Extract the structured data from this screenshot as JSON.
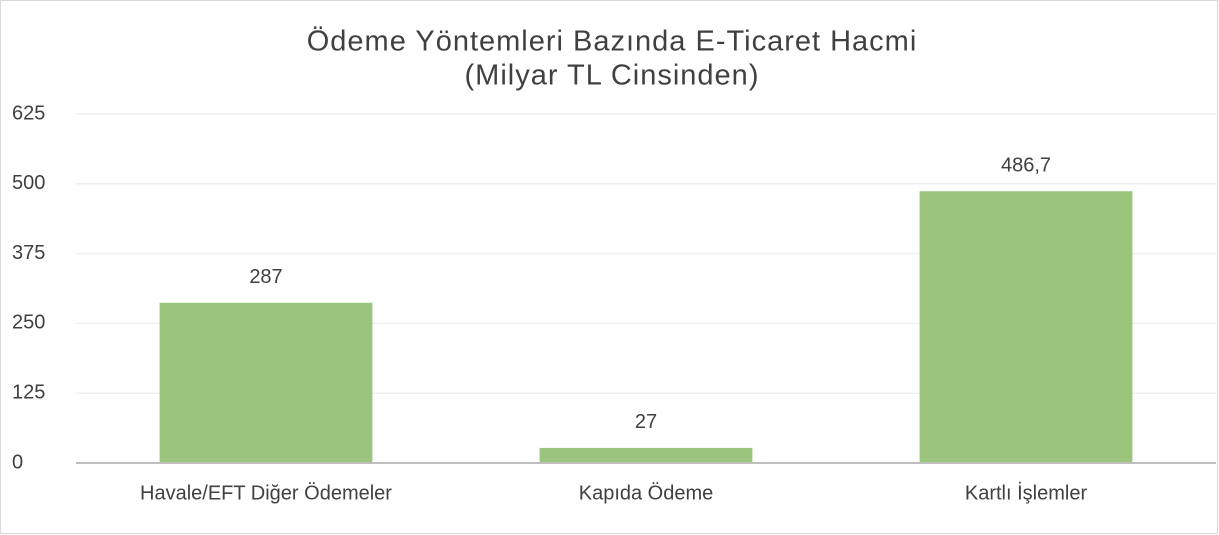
{
  "chart_data": {
    "type": "bar",
    "title": "Ödeme Yöntemleri Bazında E-Ticaret Hacmi",
    "subtitle": "(Milyar TL Cinsinden)",
    "categories": [
      "Havale/EFT Diğer Ödemeler",
      "Kapıda Ödeme",
      "Kartlı İşlemler"
    ],
    "values": [
      287,
      27,
      486.7
    ],
    "value_labels": [
      "287",
      "27",
      "486,7"
    ],
    "color": "#9bc47c",
    "ylim": [
      0,
      625
    ],
    "yticks": [
      0,
      125,
      250,
      375,
      500,
      625
    ],
    "grid": true
  }
}
